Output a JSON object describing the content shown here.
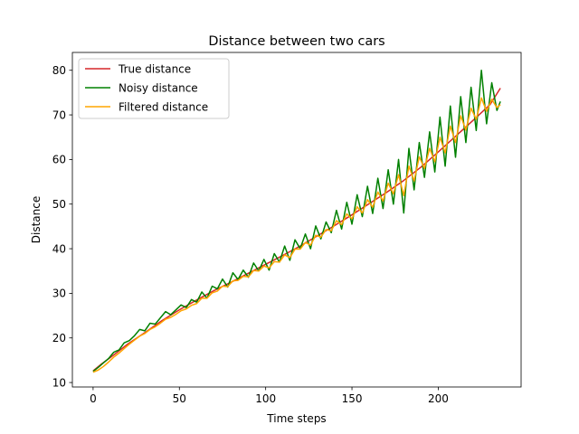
{
  "chart_data": {
    "type": "line",
    "title": "Distance between two cars",
    "xlabel": "Time steps",
    "ylabel": "Distance",
    "xlim": [
      -12,
      248
    ],
    "ylim": [
      9,
      84
    ],
    "xticks": [
      0,
      50,
      100,
      150,
      200
    ],
    "yticks": [
      10,
      20,
      30,
      40,
      50,
      60,
      70,
      80
    ],
    "grid": false,
    "legend_position": "upper-left",
    "series": [
      {
        "name": "True distance",
        "color": "#d62728",
        "x": [
          0,
          5,
          10,
          20,
          30,
          40,
          50,
          60,
          70,
          80,
          90,
          100,
          110,
          120,
          130,
          140,
          150,
          160,
          170,
          180,
          190,
          200,
          210,
          220,
          230,
          236
        ],
        "y": [
          12.6,
          14.2,
          15.6,
          18.6,
          21.2,
          23.9,
          26.3,
          28.5,
          30.6,
          32.5,
          34.5,
          36.5,
          38.5,
          40.6,
          42.9,
          45.2,
          47.6,
          50.1,
          52.6,
          55.3,
          58.3,
          61.7,
          65.2,
          68.7,
          72.3,
          76.0
        ]
      },
      {
        "name": "Noisy distance",
        "color": "#008000",
        "x": [
          0,
          3,
          6,
          9,
          12,
          15,
          18,
          21,
          24,
          27,
          30,
          33,
          36,
          39,
          42,
          45,
          48,
          51,
          54,
          57,
          60,
          63,
          66,
          69,
          72,
          75,
          78,
          81,
          84,
          87,
          90,
          93,
          96,
          99,
          102,
          105,
          108,
          111,
          114,
          117,
          120,
          123,
          126,
          129,
          132,
          135,
          138,
          141,
          144,
          147,
          150,
          153,
          156,
          159,
          162,
          165,
          168,
          171,
          174,
          177,
          180,
          183,
          186,
          189,
          192,
          195,
          198,
          201,
          204,
          207,
          210,
          213,
          216,
          219,
          222,
          225,
          228,
          231,
          234,
          236
        ],
        "y": [
          12.5,
          13.4,
          14.4,
          15.4,
          16.8,
          17.3,
          18.9,
          19.4,
          20.5,
          21.9,
          21.6,
          23.3,
          23.1,
          24.5,
          25.9,
          25.2,
          26.3,
          27.4,
          26.8,
          28.6,
          28.0,
          30.3,
          28.9,
          31.6,
          31.0,
          33.2,
          31.4,
          34.6,
          33.1,
          35.2,
          33.6,
          36.8,
          35.0,
          37.6,
          35.2,
          38.9,
          37.0,
          40.6,
          37.4,
          42.0,
          40.0,
          43.3,
          40.0,
          45.1,
          42.2,
          46.0,
          43.6,
          48.6,
          44.4,
          50.4,
          45.5,
          52.1,
          47.2,
          54.0,
          47.9,
          55.8,
          49.0,
          57.7,
          50.0,
          60.0,
          48.0,
          62.5,
          53.2,
          63.8,
          56.0,
          66.2,
          57.2,
          69.5,
          58.5,
          72.0,
          60.5,
          74.1,
          63.8,
          76.2,
          66.5,
          80.0,
          68.0,
          77.2,
          71.0,
          73.0
        ]
      },
      {
        "name": "Filtered distance",
        "color": "#ffa500",
        "x": [
          0,
          3,
          6,
          9,
          12,
          15,
          18,
          21,
          24,
          27,
          30,
          33,
          36,
          39,
          42,
          45,
          48,
          51,
          54,
          57,
          60,
          63,
          66,
          69,
          72,
          75,
          78,
          81,
          84,
          87,
          90,
          93,
          96,
          99,
          102,
          105,
          108,
          111,
          114,
          117,
          120,
          123,
          126,
          129,
          132,
          135,
          138,
          141,
          144,
          147,
          150,
          153,
          156,
          159,
          162,
          165,
          168,
          171,
          174,
          177,
          180,
          183,
          186,
          189,
          192,
          195,
          198,
          201,
          204,
          207,
          210,
          213,
          216,
          219,
          222,
          225,
          228,
          231,
          234,
          236
        ],
        "y": [
          12.3,
          12.8,
          13.6,
          14.6,
          15.7,
          16.6,
          17.6,
          18.6,
          19.5,
          20.4,
          21.0,
          21.9,
          22.5,
          23.3,
          24.2,
          24.6,
          25.3,
          26.1,
          26.5,
          27.3,
          27.7,
          28.9,
          28.9,
          30.1,
          30.5,
          31.6,
          31.5,
          32.8,
          32.9,
          33.8,
          33.7,
          35.1,
          35.0,
          36.1,
          35.7,
          37.1,
          37.0,
          38.6,
          38.0,
          39.9,
          39.9,
          41.4,
          40.8,
          43.0,
          42.6,
          44.3,
          44.0,
          46.3,
          45.4,
          47.8,
          46.7,
          49.4,
          48.0,
          51.0,
          49.3,
          52.7,
          50.7,
          54.7,
          52.3,
          56.6,
          51.9,
          58.5,
          55.2,
          60.6,
          58.0,
          62.5,
          59.5,
          65.0,
          61.5,
          67.5,
          63.8,
          69.8,
          66.6,
          71.5,
          69.0,
          73.8,
          70.8,
          73.5,
          71.6,
          72.3
        ]
      }
    ]
  }
}
